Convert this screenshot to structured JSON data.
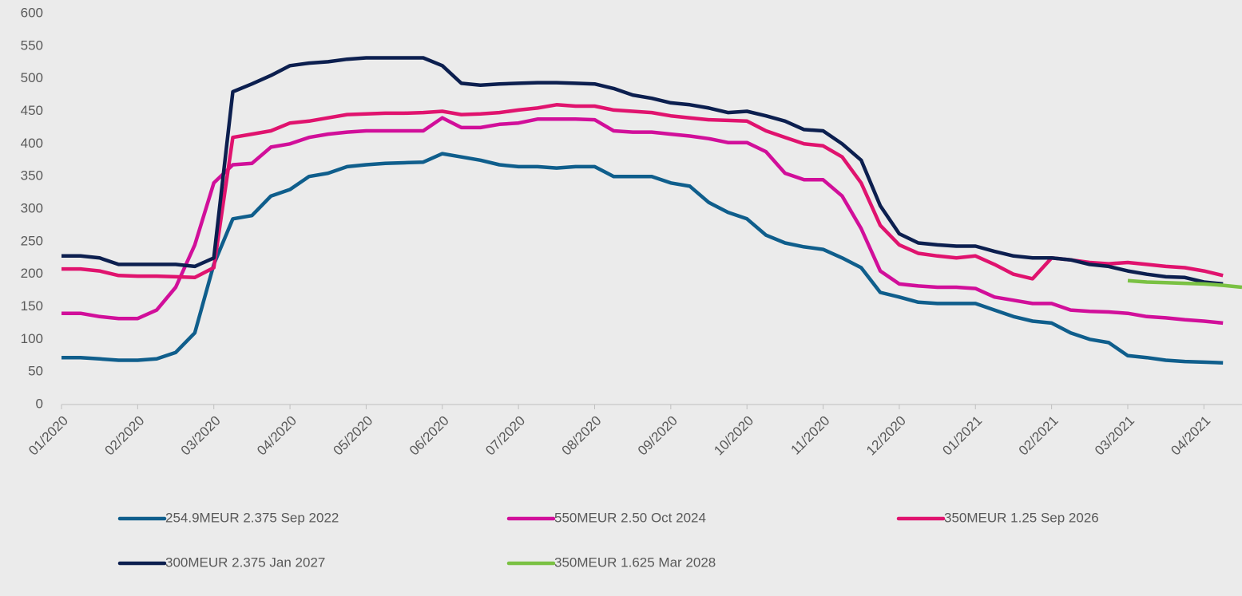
{
  "chart_data": {
    "type": "line",
    "categories": [
      "01/2020",
      null,
      null,
      null,
      "02/2020",
      null,
      null,
      null,
      "03/2020",
      null,
      null,
      null,
      "04/2020",
      null,
      null,
      null,
      "05/2020",
      null,
      null,
      null,
      "06/2020",
      null,
      null,
      null,
      "07/2020",
      null,
      null,
      null,
      "08/2020",
      null,
      null,
      null,
      "09/2020",
      null,
      null,
      null,
      "10/2020",
      null,
      null,
      null,
      "11/2020",
      null,
      null,
      null,
      "12/2020",
      null,
      null,
      null,
      "01/2021",
      null,
      null,
      null,
      "02/2021",
      null,
      null,
      null,
      "03/2021",
      null,
      null,
      null,
      "04/2021",
      null,
      null
    ],
    "series": [
      {
        "name": "254.9MEUR 2.375 Sep 2022",
        "color": "#0f5e8c",
        "values": [
          72,
          72,
          70,
          68,
          68,
          70,
          80,
          110,
          215,
          285,
          290,
          320,
          330,
          350,
          355,
          365,
          368,
          370,
          371,
          372,
          385,
          380,
          375,
          368,
          365,
          365,
          363,
          365,
          365,
          350,
          350,
          350,
          340,
          335,
          310,
          295,
          285,
          260,
          248,
          242,
          238,
          225,
          210,
          172,
          165,
          157,
          155,
          155,
          155,
          145,
          135,
          128,
          125,
          110,
          100,
          95,
          75,
          72,
          68,
          66,
          65,
          64,
          null
        ]
      },
      {
        "name": "550MEUR 2.50 Oct 2024",
        "color": "#d10f9a",
        "values": [
          140,
          140,
          135,
          132,
          132,
          145,
          180,
          245,
          340,
          368,
          370,
          395,
          400,
          410,
          415,
          418,
          420,
          420,
          420,
          420,
          440,
          425,
          425,
          430,
          432,
          438,
          438,
          438,
          437,
          420,
          418,
          418,
          415,
          412,
          408,
          402,
          402,
          388,
          355,
          345,
          345,
          320,
          270,
          205,
          185,
          182,
          180,
          180,
          178,
          165,
          160,
          155,
          155,
          145,
          143,
          142,
          140,
          135,
          133,
          130,
          128,
          125,
          null
        ]
      },
      {
        "name": "350MEUR 1.25 Sep 2026",
        "color": "#e0136e",
        "values": [
          208,
          208,
          205,
          198,
          197,
          197,
          196,
          195,
          210,
          410,
          415,
          420,
          432,
          435,
          440,
          445,
          446,
          447,
          447,
          448,
          450,
          445,
          446,
          448,
          452,
          455,
          460,
          458,
          458,
          452,
          450,
          448,
          443,
          440,
          437,
          436,
          435,
          420,
          410,
          400,
          397,
          380,
          340,
          275,
          245,
          232,
          228,
          225,
          228,
          215,
          200,
          193,
          225,
          222,
          218,
          216,
          218,
          215,
          212,
          210,
          205,
          198,
          null
        ]
      },
      {
        "name": "300MEUR 2.375 Jan 2027",
        "color": "#0c1f4f",
        "values": [
          228,
          228,
          225,
          215,
          215,
          215,
          215,
          212,
          225,
          480,
          492,
          505,
          520,
          524,
          526,
          530,
          532,
          532,
          532,
          532,
          520,
          493,
          490,
          492,
          493,
          494,
          494,
          493,
          492,
          485,
          475,
          470,
          463,
          460,
          455,
          448,
          450,
          443,
          435,
          422,
          420,
          400,
          375,
          305,
          262,
          248,
          245,
          243,
          243,
          235,
          228,
          225,
          225,
          222,
          215,
          212,
          205,
          200,
          196,
          195,
          188,
          185,
          null
        ]
      },
      {
        "name": "350MEUR 1.625 Mar 2028",
        "color": "#7ac143",
        "values": [
          null,
          null,
          null,
          null,
          null,
          null,
          null,
          null,
          null,
          null,
          null,
          null,
          null,
          null,
          null,
          null,
          null,
          null,
          null,
          null,
          null,
          null,
          null,
          null,
          null,
          null,
          null,
          null,
          null,
          null,
          null,
          null,
          null,
          null,
          null,
          null,
          null,
          null,
          null,
          null,
          null,
          null,
          null,
          null,
          null,
          null,
          null,
          null,
          null,
          null,
          null,
          null,
          null,
          null,
          null,
          null,
          190,
          188,
          187,
          186,
          185,
          183,
          180
        ]
      }
    ],
    "ylim": [
      0,
      600
    ],
    "yticks": [
      0,
      50,
      100,
      150,
      200,
      250,
      300,
      350,
      400,
      450,
      500,
      550,
      600
    ],
    "grid": false,
    "legend": "bottom"
  }
}
